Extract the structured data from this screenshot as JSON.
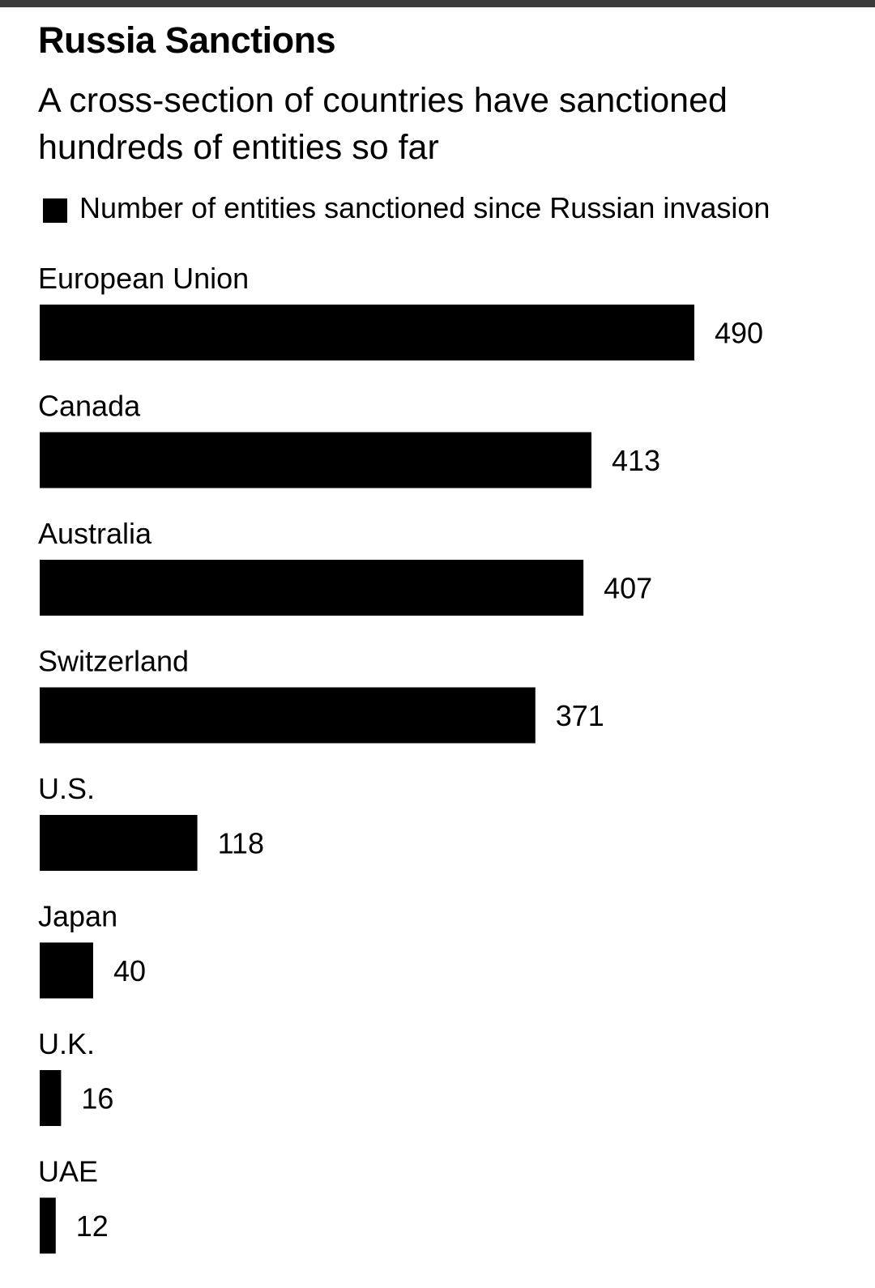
{
  "chart_data": {
    "type": "bar",
    "orientation": "horizontal",
    "title": "Russia Sanctions",
    "subtitle": "A cross-section of countries have sanctioned hundreds of entities so far",
    "legend": "Number of entities sanctioned since Russian invasion",
    "legend_placement": "top-left",
    "categories": [
      "European Union",
      "Canada",
      "Australia",
      "Switzerland",
      "U.S.",
      "Japan",
      "U.K.",
      "UAE"
    ],
    "series": [
      {
        "name": "Number of entities sanctioned since Russian invasion",
        "values": [
          490,
          413,
          407,
          371,
          118,
          40,
          16,
          12
        ]
      }
    ],
    "value_labels": [
      "490",
      "413",
      "407",
      "371",
      "118",
      "40",
      "16",
      "12"
    ],
    "xlim": [
      0,
      490
    ],
    "grid": false,
    "bar_color": "#000000"
  }
}
